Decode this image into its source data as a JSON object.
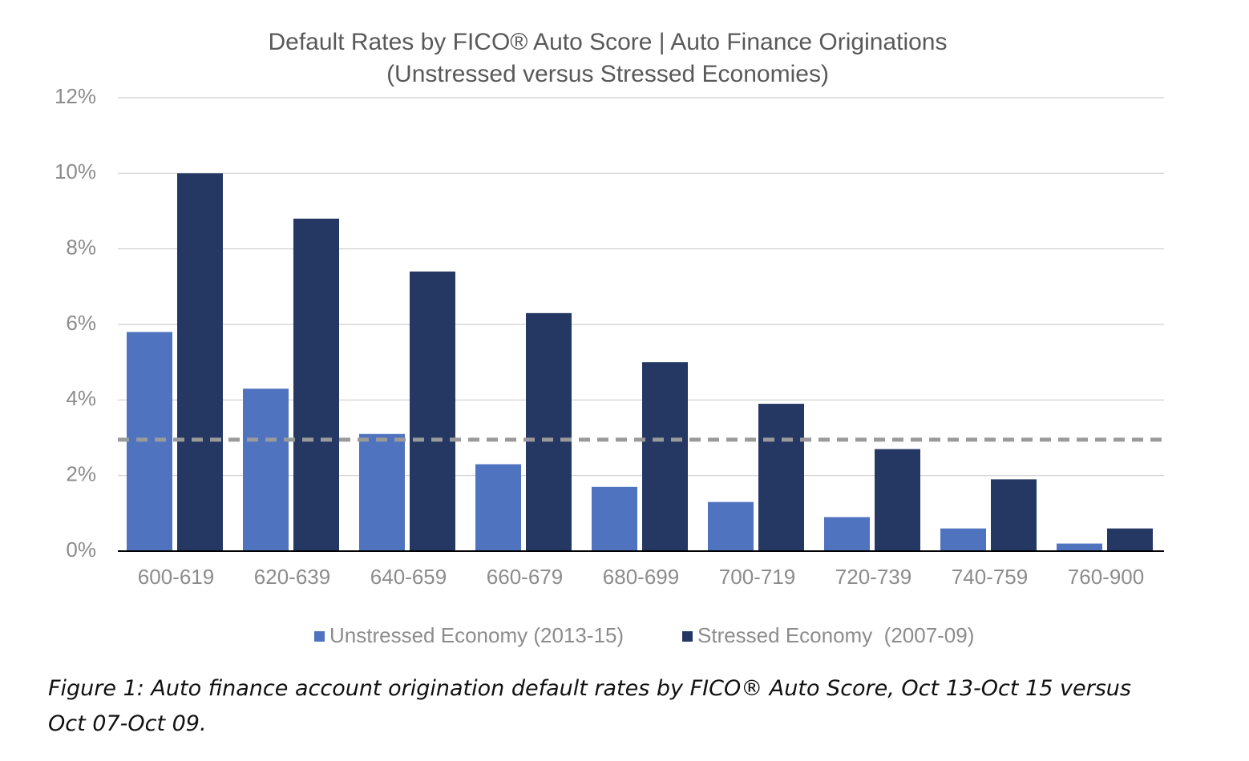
{
  "chart_data": {
    "type": "bar",
    "title": "Default Rates by FICO® Auto Score | Auto Finance Originations",
    "subtitle": "(Unstressed versus Stressed Economies)",
    "categories": [
      "600-619",
      "620-639",
      "640-659",
      "660-679",
      "680-699",
      "700-719",
      "720-739",
      "740-759",
      "760-900"
    ],
    "series": [
      {
        "name": "Unstressed Economy (2013-15)",
        "color": "#4f73be",
        "values": [
          5.8,
          4.3,
          3.1,
          2.3,
          1.7,
          1.3,
          0.9,
          0.6,
          0.2
        ]
      },
      {
        "name": "Stressed Economy  (2007-09)",
        "color": "#253763",
        "values": [
          10.0,
          8.8,
          7.4,
          6.3,
          5.0,
          3.9,
          2.7,
          1.9,
          0.6
        ]
      }
    ],
    "ylim": [
      0,
      12
    ],
    "yticks": [
      {
        "value": 0,
        "label": "0%"
      },
      {
        "value": 2,
        "label": "2%"
      },
      {
        "value": 4,
        "label": "4%"
      },
      {
        "value": 6,
        "label": "6%"
      },
      {
        "value": 8,
        "label": "8%"
      },
      {
        "value": 10,
        "label": "10%"
      },
      {
        "value": 12,
        "label": "12%"
      }
    ],
    "grid": true,
    "reference_line": 2.95,
    "legend": "bottom"
  },
  "caption": "Figure 1: Auto finance account origination default rates by FICO® Auto Score, Oct 13-Oct 15 versus Oct 07-Oct 09."
}
